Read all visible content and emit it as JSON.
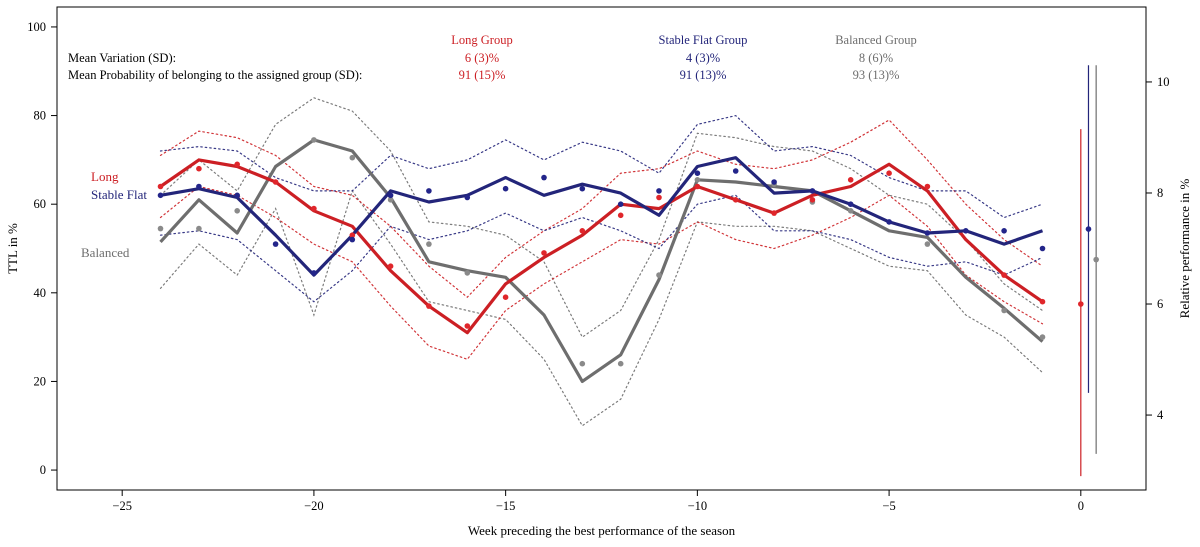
{
  "colors": {
    "long": "#cc1f24",
    "stable": "#23257a",
    "balanced": "#6e6e6e",
    "long_dot": "#e0262b",
    "stable_dot": "#23258a",
    "balanced_dot": "#8a8a8a",
    "axis": "#000000"
  },
  "chart_data": {
    "type": "line",
    "title": "",
    "xlabel": "Week preceding the best performance of the season",
    "ylabel": "TTL in %",
    "y2label": "Relative performance in %",
    "xlim": [
      -26.7,
      1.7
    ],
    "ylim": [
      -4.5,
      104.5
    ],
    "y2lim": [
      2.65,
      11.35
    ],
    "xticks": [
      -25,
      -20,
      -15,
      -10,
      -5,
      0
    ],
    "xtick_labels": [
      "−25",
      "−20",
      "−15",
      "−10",
      "−5",
      "0"
    ],
    "yticks": [
      0,
      20,
      40,
      60,
      80,
      100
    ],
    "y2ticks": [
      4,
      6,
      8,
      10
    ],
    "x": [
      -24,
      -23,
      -22,
      -21,
      -20,
      -19,
      -18,
      -17,
      -16,
      -15,
      -14,
      -13,
      -12,
      -11,
      -10,
      -9,
      -8,
      -7,
      -6,
      -5,
      -4,
      -3,
      -2,
      -1
    ],
    "series": [
      {
        "key": "long",
        "name": "Long",
        "group_header": "Long Group",
        "mean_variation": "6 (3)%",
        "mean_probability": "91 (15)%",
        "mean": [
          64,
          70,
          68.5,
          65,
          58.5,
          55,
          45,
          37,
          31,
          42,
          48,
          53,
          60,
          59,
          64,
          61,
          58,
          62,
          64,
          69,
          63,
          52,
          44,
          38
        ],
        "upper": [
          71,
          76.5,
          75,
          71,
          64,
          62,
          55,
          46,
          39,
          48,
          54,
          59,
          67,
          68,
          72,
          69,
          68,
          70,
          74,
          79,
          70,
          60,
          52,
          46
        ],
        "lower": [
          57,
          64,
          62,
          57,
          51,
          47,
          37,
          28,
          25,
          36,
          42,
          47,
          52,
          51,
          56,
          52,
          50,
          53,
          57,
          62,
          55,
          44,
          38,
          33
        ],
        "points": [
          64,
          68,
          69,
          65,
          59,
          53,
          46,
          37,
          32.5,
          39,
          49,
          54,
          57.5,
          61.5,
          64,
          61,
          58,
          61,
          65.5,
          67,
          64,
          null,
          44,
          38
        ],
        "rel_perf": 6.0,
        "rel_perf_low": 2.9,
        "rel_perf_high": 9.15
      },
      {
        "key": "stable",
        "name": "Stable Flat",
        "group_header": "Stable Flat Group",
        "mean_variation": "4 (3)%",
        "mean_probability": "91 (13)%",
        "mean": [
          62,
          63.5,
          61.5,
          53,
          44,
          53,
          63,
          60.5,
          62,
          66,
          62,
          64.5,
          62.5,
          57.5,
          68.5,
          70.5,
          62.5,
          63,
          60,
          56,
          53.5,
          54,
          51,
          54
        ],
        "upper": [
          72,
          73,
          72,
          66,
          63,
          63,
          71,
          68,
          70,
          74.5,
          70,
          74,
          72,
          67,
          78,
          80,
          72,
          73,
          71,
          66,
          63,
          63,
          57,
          60
        ],
        "lower": [
          53,
          54,
          52,
          45,
          38,
          45,
          55,
          52,
          54,
          58,
          54,
          57,
          54,
          50,
          60,
          62,
          54,
          54,
          52,
          48,
          46,
          47,
          44,
          48
        ],
        "points": [
          62,
          64,
          62,
          51,
          44.5,
          52,
          62,
          63,
          61.5,
          63.5,
          66,
          63.5,
          60,
          63,
          67,
          67.5,
          65,
          63,
          60,
          56,
          53.5,
          54,
          54,
          50
        ],
        "rel_perf": 7.35,
        "rel_perf_low": 4.4,
        "rel_perf_high": 10.3
      },
      {
        "key": "balanced",
        "name": "Balanced",
        "group_header": "Balanced Group",
        "mean_variation": "8 (6)%",
        "mean_probability": "93 (13)%",
        "mean": [
          51.5,
          61,
          53.5,
          68.5,
          74.5,
          72,
          61.5,
          47,
          45,
          43.5,
          35,
          20,
          26,
          43,
          65.5,
          65,
          64,
          63,
          58.5,
          54,
          52.5,
          43.5,
          36.5,
          29
        ],
        "upper": [
          62,
          70,
          63,
          78,
          84,
          81,
          72,
          56,
          55,
          53,
          47,
          30,
          36,
          52,
          76,
          75,
          73,
          72,
          68,
          62,
          60,
          52,
          42,
          36
        ],
        "lower": [
          41,
          51,
          44,
          59,
          35,
          63,
          51,
          38,
          36,
          34,
          25,
          10,
          16,
          34,
          56,
          55,
          55,
          54,
          50,
          46,
          45,
          35,
          30,
          22
        ],
        "points": [
          54.5,
          54.5,
          58.5,
          null,
          74.5,
          70.5,
          61,
          51,
          44.5,
          null,
          null,
          24,
          24,
          44,
          65.5,
          null,
          64.5,
          60.5,
          58.5,
          null,
          51,
          null,
          36,
          30
        ],
        "rel_perf": 6.8,
        "rel_perf_low": 3.3,
        "rel_perf_high": 10.3
      }
    ],
    "annotations": {
      "row1_label": "Mean Variation (SD):",
      "row2_label": "Mean Probability of belonging to the assigned group (SD):"
    }
  }
}
